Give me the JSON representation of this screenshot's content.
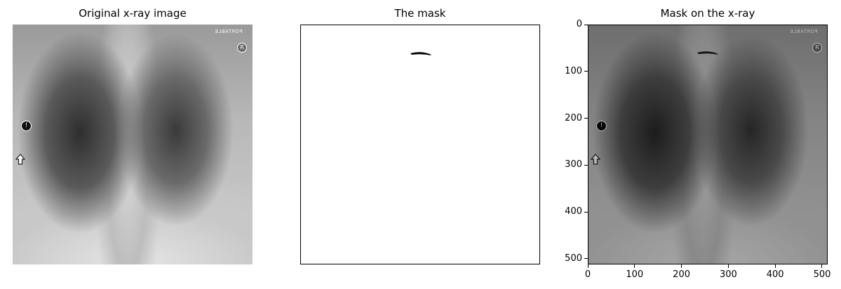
{
  "panels": [
    {
      "title": "Original x-ray image"
    },
    {
      "title": "The mask"
    },
    {
      "title": "Mask on the x-ray"
    }
  ],
  "xray_marks": {
    "portable": "PORTABLE",
    "r_marker": "R",
    "dot_marker": "!"
  },
  "axes": {
    "x_ticks": [
      "0",
      "100",
      "200",
      "300",
      "400",
      "500"
    ],
    "y_ticks": [
      "0",
      "100",
      "200",
      "300",
      "400",
      "500"
    ]
  }
}
